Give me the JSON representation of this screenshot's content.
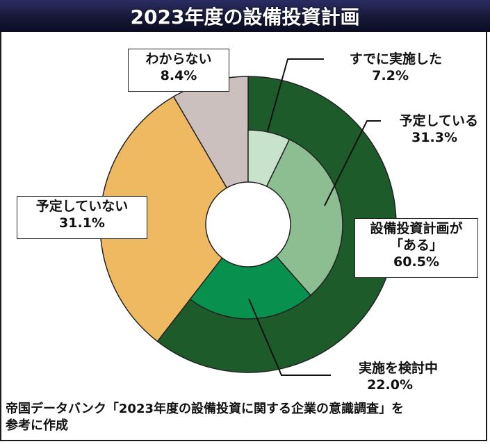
{
  "header": {
    "title": "2023年度の設備投資計画"
  },
  "chart_data": {
    "type": "pie",
    "style": "nested-donut",
    "outer": [
      {
        "label": "設備投資計画が「ある」",
        "value": 60.5,
        "color": "#1d5b2b"
      },
      {
        "label": "予定していない",
        "value": 31.1,
        "color": "#efb961"
      },
      {
        "label": "わからない",
        "value": 8.4,
        "color": "#cbc0be"
      }
    ],
    "inner": [
      {
        "label": "すでに実施した",
        "value": 7.2,
        "color": "#c8e3cc"
      },
      {
        "label": "予定している",
        "value": 31.3,
        "color": "#8cbe92"
      },
      {
        "label": "実施を検討中",
        "value": 22.0,
        "color": "#07904e"
      }
    ]
  },
  "labels": {
    "wakaranai": {
      "name": "わからない",
      "pct": "8.4%"
    },
    "yoteishiteinai": {
      "name": "予定していない",
      "pct": "31.1%"
    },
    "aru": {
      "line1": "設備投資計画が",
      "line2": "「ある」",
      "pct": "60.5%"
    },
    "sudeni": {
      "name": "すでに実施した",
      "pct": "7.2%"
    },
    "yotei": {
      "name": "予定している",
      "pct": "31.3%"
    },
    "kento": {
      "name": "実施を検討中",
      "pct": "22.0%"
    }
  },
  "footer": {
    "line1": "帝国データバンク「2023年度の設備投資に関する企業の意識調査」を",
    "line2": "参考に作成"
  }
}
